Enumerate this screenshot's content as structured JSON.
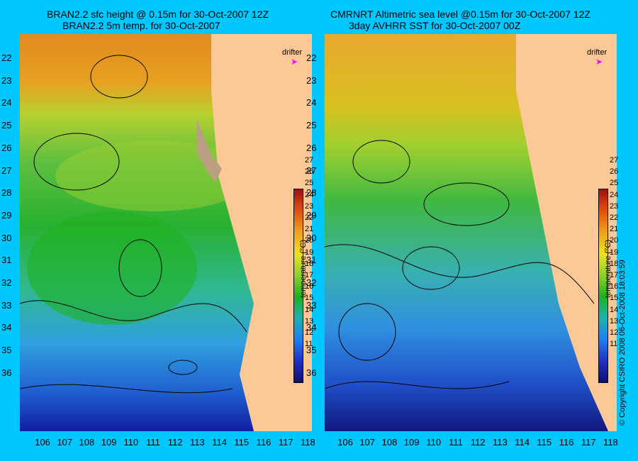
{
  "left": {
    "title_line1": "BRAN2.2 sfc height @ 0.15m for 30-Oct-2007 12Z",
    "title_line2": "BRAN2.2 5m temp. for 30-Oct-2007"
  },
  "right": {
    "title_line1": "CMRNRT Altimetric sea level  @0.15m  for 30-Oct-2007 12Z",
    "title_line2": "3day AVHRR SST for 30-Oct-2007 00Z"
  },
  "drifter_label": "drifter",
  "y_ticks": [
    "22",
    "23",
    "24",
    "25",
    "26",
    "27",
    "28",
    "29",
    "30",
    "31",
    "32",
    "33",
    "34",
    "35",
    "36"
  ],
  "x_ticks": [
    "106",
    "107",
    "108",
    "109",
    "110",
    "111",
    "112",
    "113",
    "114",
    "115",
    "116",
    "117",
    "118"
  ],
  "colorbar": {
    "title": "temperature (°C)",
    "ticks": [
      "27",
      "26",
      "25",
      "24",
      "23",
      "22",
      "21",
      "20",
      "19",
      "18",
      "17",
      "16",
      "15",
      "14",
      "13",
      "12",
      "11"
    ]
  },
  "copyright": "© Copyright CSIRO 2008    06-Oct-2008 18:03:59",
  "colors": {
    "background": "#00c8ff",
    "land": "#fcc896",
    "drifter": "#ff00ff"
  }
}
